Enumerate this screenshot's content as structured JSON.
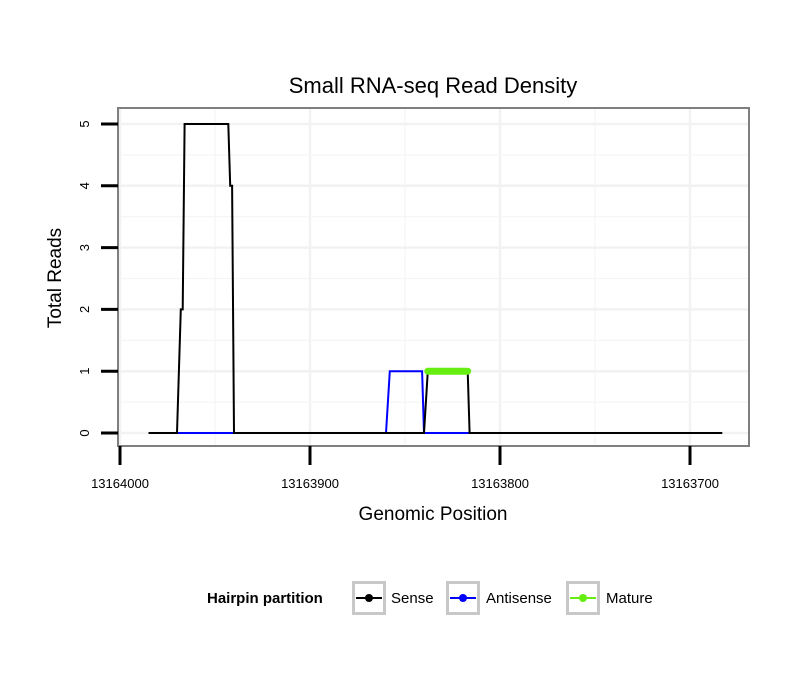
{
  "chart_data": {
    "type": "line",
    "title": "Small RNA-seq Read Density",
    "xlabel": "Genomic Position",
    "ylabel": "Total Reads",
    "xlim": [
      13164000,
      13163700
    ],
    "ylim": [
      0,
      5
    ],
    "xticks": [
      13164000,
      13163900,
      13163800,
      13163700
    ],
    "xtick_labels": [
      "13164000",
      "13163900",
      "13163800",
      "13163700"
    ],
    "yticks": [
      0,
      1,
      2,
      3,
      4,
      5
    ],
    "ytick_labels": [
      "0",
      "1",
      "2",
      "3",
      "4",
      "5"
    ],
    "grid": true,
    "legend_title": "Hairpin partition",
    "legend_position": "bottom",
    "series": [
      {
        "name": "Sense",
        "color": "#000000",
        "points": [
          [
            13163985,
            0
          ],
          [
            13163970,
            0
          ],
          [
            13163968,
            2
          ],
          [
            13163967,
            2
          ],
          [
            13163966,
            5
          ],
          [
            13163943,
            5
          ],
          [
            13163942,
            4
          ],
          [
            13163941,
            4
          ],
          [
            13163940,
            0
          ],
          [
            13163840,
            0
          ],
          [
            13163838,
            1
          ],
          [
            13163817,
            1
          ],
          [
            13163816,
            0
          ],
          [
            13163683,
            0
          ]
        ]
      },
      {
        "name": "Antisense",
        "color": "#0000ff",
        "points": [
          [
            13163970,
            0
          ],
          [
            13163940,
            0
          ],
          [
            13163860,
            0
          ],
          [
            13163858,
            1
          ],
          [
            13163841,
            1
          ],
          [
            13163840,
            0
          ],
          [
            13163816,
            0
          ]
        ]
      },
      {
        "name": "Mature",
        "color": "#66ee11",
        "points": [
          [
            13163838,
            1
          ],
          [
            13163817,
            1
          ]
        ]
      }
    ]
  }
}
